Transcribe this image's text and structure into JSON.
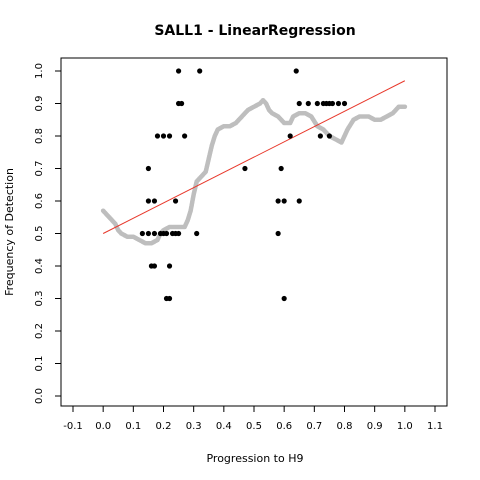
{
  "chart_data": {
    "type": "scatter",
    "title": "SALL1 - LinearRegression",
    "xlabel": "Progression to H9",
    "ylabel": "Frequency of Detection",
    "xlim": [
      -0.1,
      1.1
    ],
    "ylim": [
      0.0,
      1.0
    ],
    "xticks": [
      "-0.1",
      "0.0",
      "0.1",
      "0.2",
      "0.3",
      "0.4",
      "0.5",
      "0.6",
      "0.7",
      "0.8",
      "0.9",
      "1.0",
      "1.1"
    ],
    "yticks": [
      "0.0",
      "0.1",
      "0.2",
      "0.3",
      "0.4",
      "0.5",
      "0.6",
      "0.7",
      "0.8",
      "0.9",
      "1.0"
    ],
    "grid": false,
    "legend": "none",
    "colors": {
      "observed": "#000000",
      "smoothed": "#bebebe",
      "regression": "#e8382b",
      "axis": "#000000"
    },
    "series": [
      {
        "kind": "observed-points",
        "points": [
          [
            0.13,
            0.5
          ],
          [
            0.15,
            0.7
          ],
          [
            0.15,
            0.6
          ],
          [
            0.15,
            0.5
          ],
          [
            0.16,
            0.4
          ],
          [
            0.17,
            0.4
          ],
          [
            0.17,
            0.5
          ],
          [
            0.17,
            0.6
          ],
          [
            0.18,
            0.8
          ],
          [
            0.19,
            0.5
          ],
          [
            0.2,
            0.5
          ],
          [
            0.2,
            0.8
          ],
          [
            0.21,
            0.3
          ],
          [
            0.21,
            0.5
          ],
          [
            0.22,
            0.3
          ],
          [
            0.22,
            0.4
          ],
          [
            0.22,
            0.8
          ],
          [
            0.23,
            0.5
          ],
          [
            0.24,
            0.5
          ],
          [
            0.24,
            0.6
          ],
          [
            0.25,
            1.0
          ],
          [
            0.25,
            0.9
          ],
          [
            0.25,
            0.5
          ],
          [
            0.26,
            0.9
          ],
          [
            0.27,
            0.8
          ],
          [
            0.31,
            0.5
          ],
          [
            0.32,
            1.0
          ],
          [
            0.47,
            0.7
          ],
          [
            0.58,
            0.5
          ],
          [
            0.58,
            0.6
          ],
          [
            0.59,
            0.7
          ],
          [
            0.6,
            0.6
          ],
          [
            0.6,
            0.3
          ],
          [
            0.62,
            0.8
          ],
          [
            0.64,
            1.0
          ],
          [
            0.65,
            0.9
          ],
          [
            0.65,
            0.6
          ],
          [
            0.68,
            0.9
          ],
          [
            0.71,
            0.9
          ],
          [
            0.72,
            0.8
          ],
          [
            0.73,
            0.9
          ],
          [
            0.74,
            0.9
          ],
          [
            0.75,
            0.8
          ],
          [
            0.75,
            0.9
          ],
          [
            0.76,
            0.9
          ],
          [
            0.78,
            0.9
          ],
          [
            0.8,
            0.9
          ]
        ]
      },
      {
        "kind": "smoothed-trend",
        "points": [
          [
            0.0,
            0.57
          ],
          [
            0.02,
            0.55
          ],
          [
            0.04,
            0.53
          ],
          [
            0.05,
            0.51
          ],
          [
            0.06,
            0.5
          ],
          [
            0.08,
            0.49
          ],
          [
            0.1,
            0.49
          ],
          [
            0.12,
            0.48
          ],
          [
            0.14,
            0.47
          ],
          [
            0.16,
            0.47
          ],
          [
            0.18,
            0.48
          ],
          [
            0.19,
            0.5
          ],
          [
            0.2,
            0.51
          ],
          [
            0.22,
            0.52
          ],
          [
            0.25,
            0.52
          ],
          [
            0.27,
            0.52
          ],
          [
            0.28,
            0.54
          ],
          [
            0.29,
            0.57
          ],
          [
            0.3,
            0.62
          ],
          [
            0.31,
            0.66
          ],
          [
            0.32,
            0.67
          ],
          [
            0.34,
            0.69
          ],
          [
            0.35,
            0.73
          ],
          [
            0.36,
            0.77
          ],
          [
            0.37,
            0.8
          ],
          [
            0.38,
            0.82
          ],
          [
            0.4,
            0.83
          ],
          [
            0.42,
            0.83
          ],
          [
            0.44,
            0.84
          ],
          [
            0.46,
            0.86
          ],
          [
            0.48,
            0.88
          ],
          [
            0.5,
            0.89
          ],
          [
            0.52,
            0.9
          ],
          [
            0.53,
            0.91
          ],
          [
            0.54,
            0.9
          ],
          [
            0.55,
            0.88
          ],
          [
            0.56,
            0.87
          ],
          [
            0.58,
            0.86
          ],
          [
            0.6,
            0.84
          ],
          [
            0.62,
            0.84
          ],
          [
            0.63,
            0.86
          ],
          [
            0.65,
            0.87
          ],
          [
            0.67,
            0.87
          ],
          [
            0.69,
            0.86
          ],
          [
            0.71,
            0.83
          ],
          [
            0.73,
            0.82
          ],
          [
            0.75,
            0.8
          ],
          [
            0.77,
            0.79
          ],
          [
            0.79,
            0.78
          ],
          [
            0.8,
            0.8
          ],
          [
            0.81,
            0.82
          ],
          [
            0.83,
            0.85
          ],
          [
            0.85,
            0.86
          ],
          [
            0.88,
            0.86
          ],
          [
            0.9,
            0.85
          ],
          [
            0.92,
            0.85
          ],
          [
            0.94,
            0.86
          ],
          [
            0.96,
            0.87
          ],
          [
            0.98,
            0.89
          ],
          [
            1.0,
            0.89
          ]
        ]
      },
      {
        "kind": "regression-line",
        "points": [
          [
            0.0,
            0.5
          ],
          [
            1.0,
            0.97
          ]
        ]
      }
    ]
  }
}
